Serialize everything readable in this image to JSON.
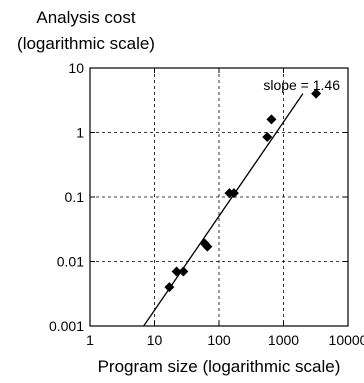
{
  "chart_data": {
    "type": "scatter",
    "title_lines": [
      "Analysis cost",
      "(logarithmic scale)"
    ],
    "xlabel": "Program size (logarithmic scale)",
    "ylabel": "",
    "x_scale": "log",
    "y_scale": "log",
    "xlim": [
      1,
      10000
    ],
    "ylim": [
      0.001,
      10
    ],
    "x_ticks": [
      "1",
      "10",
      "100",
      "1000",
      "10000"
    ],
    "y_ticks": [
      "0.001",
      "0.01",
      "0.1",
      "1",
      "10"
    ],
    "grid": true,
    "annotation": "slope = 1.46",
    "fit_line": {
      "slope": 1.46,
      "x": [
        6.8,
        2000
      ],
      "y": [
        0.001,
        4.0
      ]
    },
    "points": [
      {
        "x": 17,
        "y": 0.004
      },
      {
        "x": 22,
        "y": 0.007
      },
      {
        "x": 28,
        "y": 0.007
      },
      {
        "x": 60,
        "y": 0.019
      },
      {
        "x": 66,
        "y": 0.017
      },
      {
        "x": 145,
        "y": 0.115
      },
      {
        "x": 170,
        "y": 0.115
      },
      {
        "x": 560,
        "y": 0.85
      },
      {
        "x": 650,
        "y": 1.6
      },
      {
        "x": 3200,
        "y": 4.0
      }
    ]
  }
}
